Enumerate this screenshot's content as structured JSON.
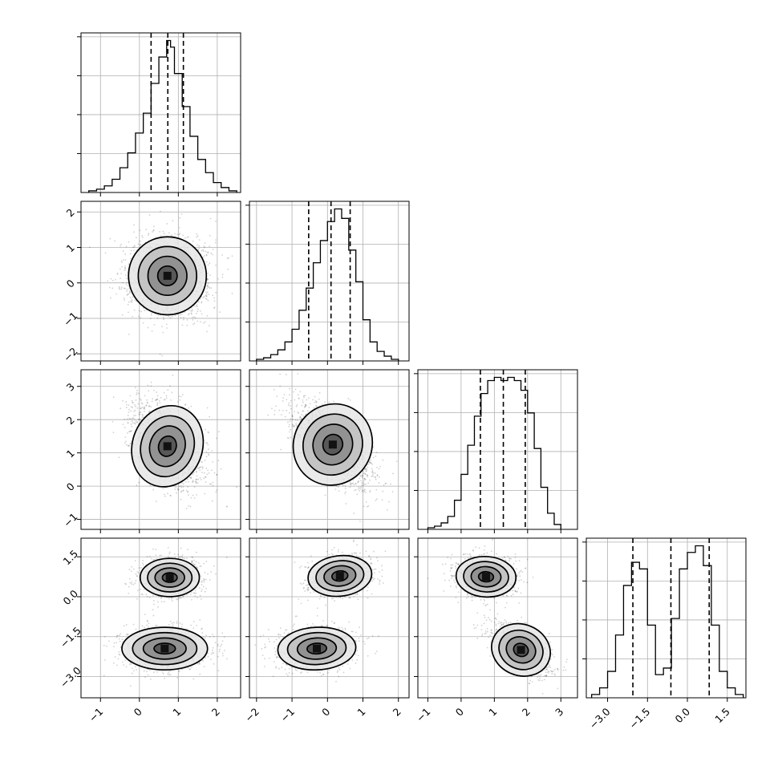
{
  "chart_data": {
    "type": "corner",
    "grid": true,
    "parameters": [
      {
        "index": 0,
        "range": [
          -1.5,
          2.6
        ],
        "ticks": [
          -1,
          0,
          1,
          2
        ],
        "tick_labels": [
          "−1",
          "0",
          "1",
          "2"
        ],
        "quantiles": [
          0.3,
          0.73,
          1.13
        ]
      },
      {
        "index": 1,
        "range": [
          -2.2,
          2.3
        ],
        "ticks": [
          -2,
          -1,
          0,
          1,
          2
        ],
        "tick_labels": [
          "−2",
          "−1",
          "0",
          "1",
          "2"
        ],
        "quantiles": [
          -0.53,
          0.1,
          0.64
        ]
      },
      {
        "index": 2,
        "range": [
          -1.3,
          3.5
        ],
        "ticks": [
          -1,
          0,
          1,
          2,
          3
        ],
        "tick_labels": [
          "−1",
          "0",
          "1",
          "2",
          "3"
        ],
        "quantiles": [
          0.58,
          1.27,
          1.93
        ]
      },
      {
        "index": 3,
        "range": [
          -3.8,
          2.2
        ],
        "ticks": [
          -3.0,
          -1.5,
          0.0,
          1.5
        ],
        "tick_labels": [
          "−3.0",
          "−1.5",
          "0.0",
          "1.5"
        ],
        "quantiles": [
          -2.05,
          -0.62,
          0.82
        ]
      }
    ],
    "histograms": [
      {
        "param": 0,
        "bin_edges": [
          -1.3,
          -1.1,
          -0.9,
          -0.7,
          -0.5,
          -0.3,
          -0.1,
          0.1,
          0.3,
          0.5,
          0.7,
          0.8,
          0.9,
          1.1,
          1.3,
          1.5,
          1.7,
          1.9,
          2.1,
          2.3,
          2.5
        ],
        "counts": [
          1,
          2,
          4,
          8,
          15,
          24,
          36,
          48,
          66,
          82,
          92,
          88,
          72,
          52,
          34,
          20,
          12,
          6,
          3,
          1
        ]
      },
      {
        "param": 1,
        "bin_edges": [
          -2.0,
          -1.8,
          -1.6,
          -1.4,
          -1.2,
          -1.0,
          -0.8,
          -0.6,
          -0.4,
          -0.2,
          0.0,
          0.2,
          0.4,
          0.6,
          0.8,
          1.0,
          1.2,
          1.4,
          1.6,
          1.8,
          2.0
        ],
        "counts": [
          1,
          2,
          4,
          7,
          12,
          20,
          32,
          46,
          62,
          76,
          88,
          96,
          90,
          70,
          50,
          26,
          12,
          6,
          3,
          1
        ]
      },
      {
        "param": 2,
        "bin_edges": [
          -1.0,
          -0.8,
          -0.6,
          -0.4,
          -0.2,
          0.0,
          0.2,
          0.4,
          0.6,
          0.8,
          1.0,
          1.2,
          1.4,
          1.6,
          1.8,
          2.0,
          2.2,
          2.4,
          2.6,
          2.8,
          3.0
        ],
        "counts": [
          1,
          2,
          4,
          8,
          18,
          34,
          52,
          70,
          84,
          92,
          94,
          92,
          94,
          92,
          86,
          72,
          50,
          26,
          10,
          3
        ]
      },
      {
        "param": 3,
        "bin_edges": [
          -3.6,
          -3.3,
          -3.0,
          -2.7,
          -2.4,
          -2.1,
          -1.8,
          -1.5,
          -1.2,
          -0.9,
          -0.6,
          -0.3,
          0.0,
          0.3,
          0.6,
          0.9,
          1.2,
          1.5,
          1.8,
          2.1
        ],
        "counts": [
          2,
          6,
          16,
          38,
          68,
          82,
          78,
          44,
          14,
          18,
          48,
          78,
          88,
          92,
          80,
          44,
          16,
          6,
          2
        ]
      }
    ],
    "pairs": [
      {
        "x_param": 0,
        "y_param": 1,
        "modes": [
          {
            "mean": [
              0.72,
              0.2
            ],
            "sigma": [
              0.5,
              0.55
            ],
            "corr": 0.0
          }
        ]
      },
      {
        "x_param": 0,
        "y_param": 2,
        "modes": [
          {
            "mean": [
              0.72,
              1.2
            ],
            "sigma": [
              0.45,
              0.62
            ],
            "corr": -0.35
          }
        ]
      },
      {
        "x_param": 1,
        "y_param": 2,
        "modes": [
          {
            "mean": [
              0.15,
              1.25
            ],
            "sigma": [
              0.55,
              0.62
            ],
            "corr": -0.65
          }
        ]
      },
      {
        "x_param": 0,
        "y_param": 3,
        "modes": [
          {
            "mean": [
              0.78,
              0.72
            ],
            "sigma": [
              0.38,
              0.36
            ],
            "corr": 0.0
          },
          {
            "mean": [
              0.65,
              -1.95
            ],
            "sigma": [
              0.55,
              0.4
            ],
            "corr": 0.0
          }
        ]
      },
      {
        "x_param": 1,
        "y_param": 3,
        "modes": [
          {
            "mean": [
              0.35,
              0.78
            ],
            "sigma": [
              0.45,
              0.38
            ],
            "corr": 0.2
          },
          {
            "mean": [
              -0.3,
              -1.95
            ],
            "sigma": [
              0.55,
              0.4
            ],
            "corr": 0.1
          }
        ]
      },
      {
        "x_param": 2,
        "y_param": 3,
        "modes": [
          {
            "mean": [
              0.75,
              0.75
            ],
            "sigma": [
              0.45,
              0.38
            ],
            "corr": -0.1
          },
          {
            "mean": [
              1.8,
              -2.0
            ],
            "sigma": [
              0.45,
              0.48
            ],
            "corr": -0.55
          }
        ]
      }
    ],
    "contour_levels_sigma": [
      0.5,
      1.0,
      1.5,
      2.0
    ]
  }
}
